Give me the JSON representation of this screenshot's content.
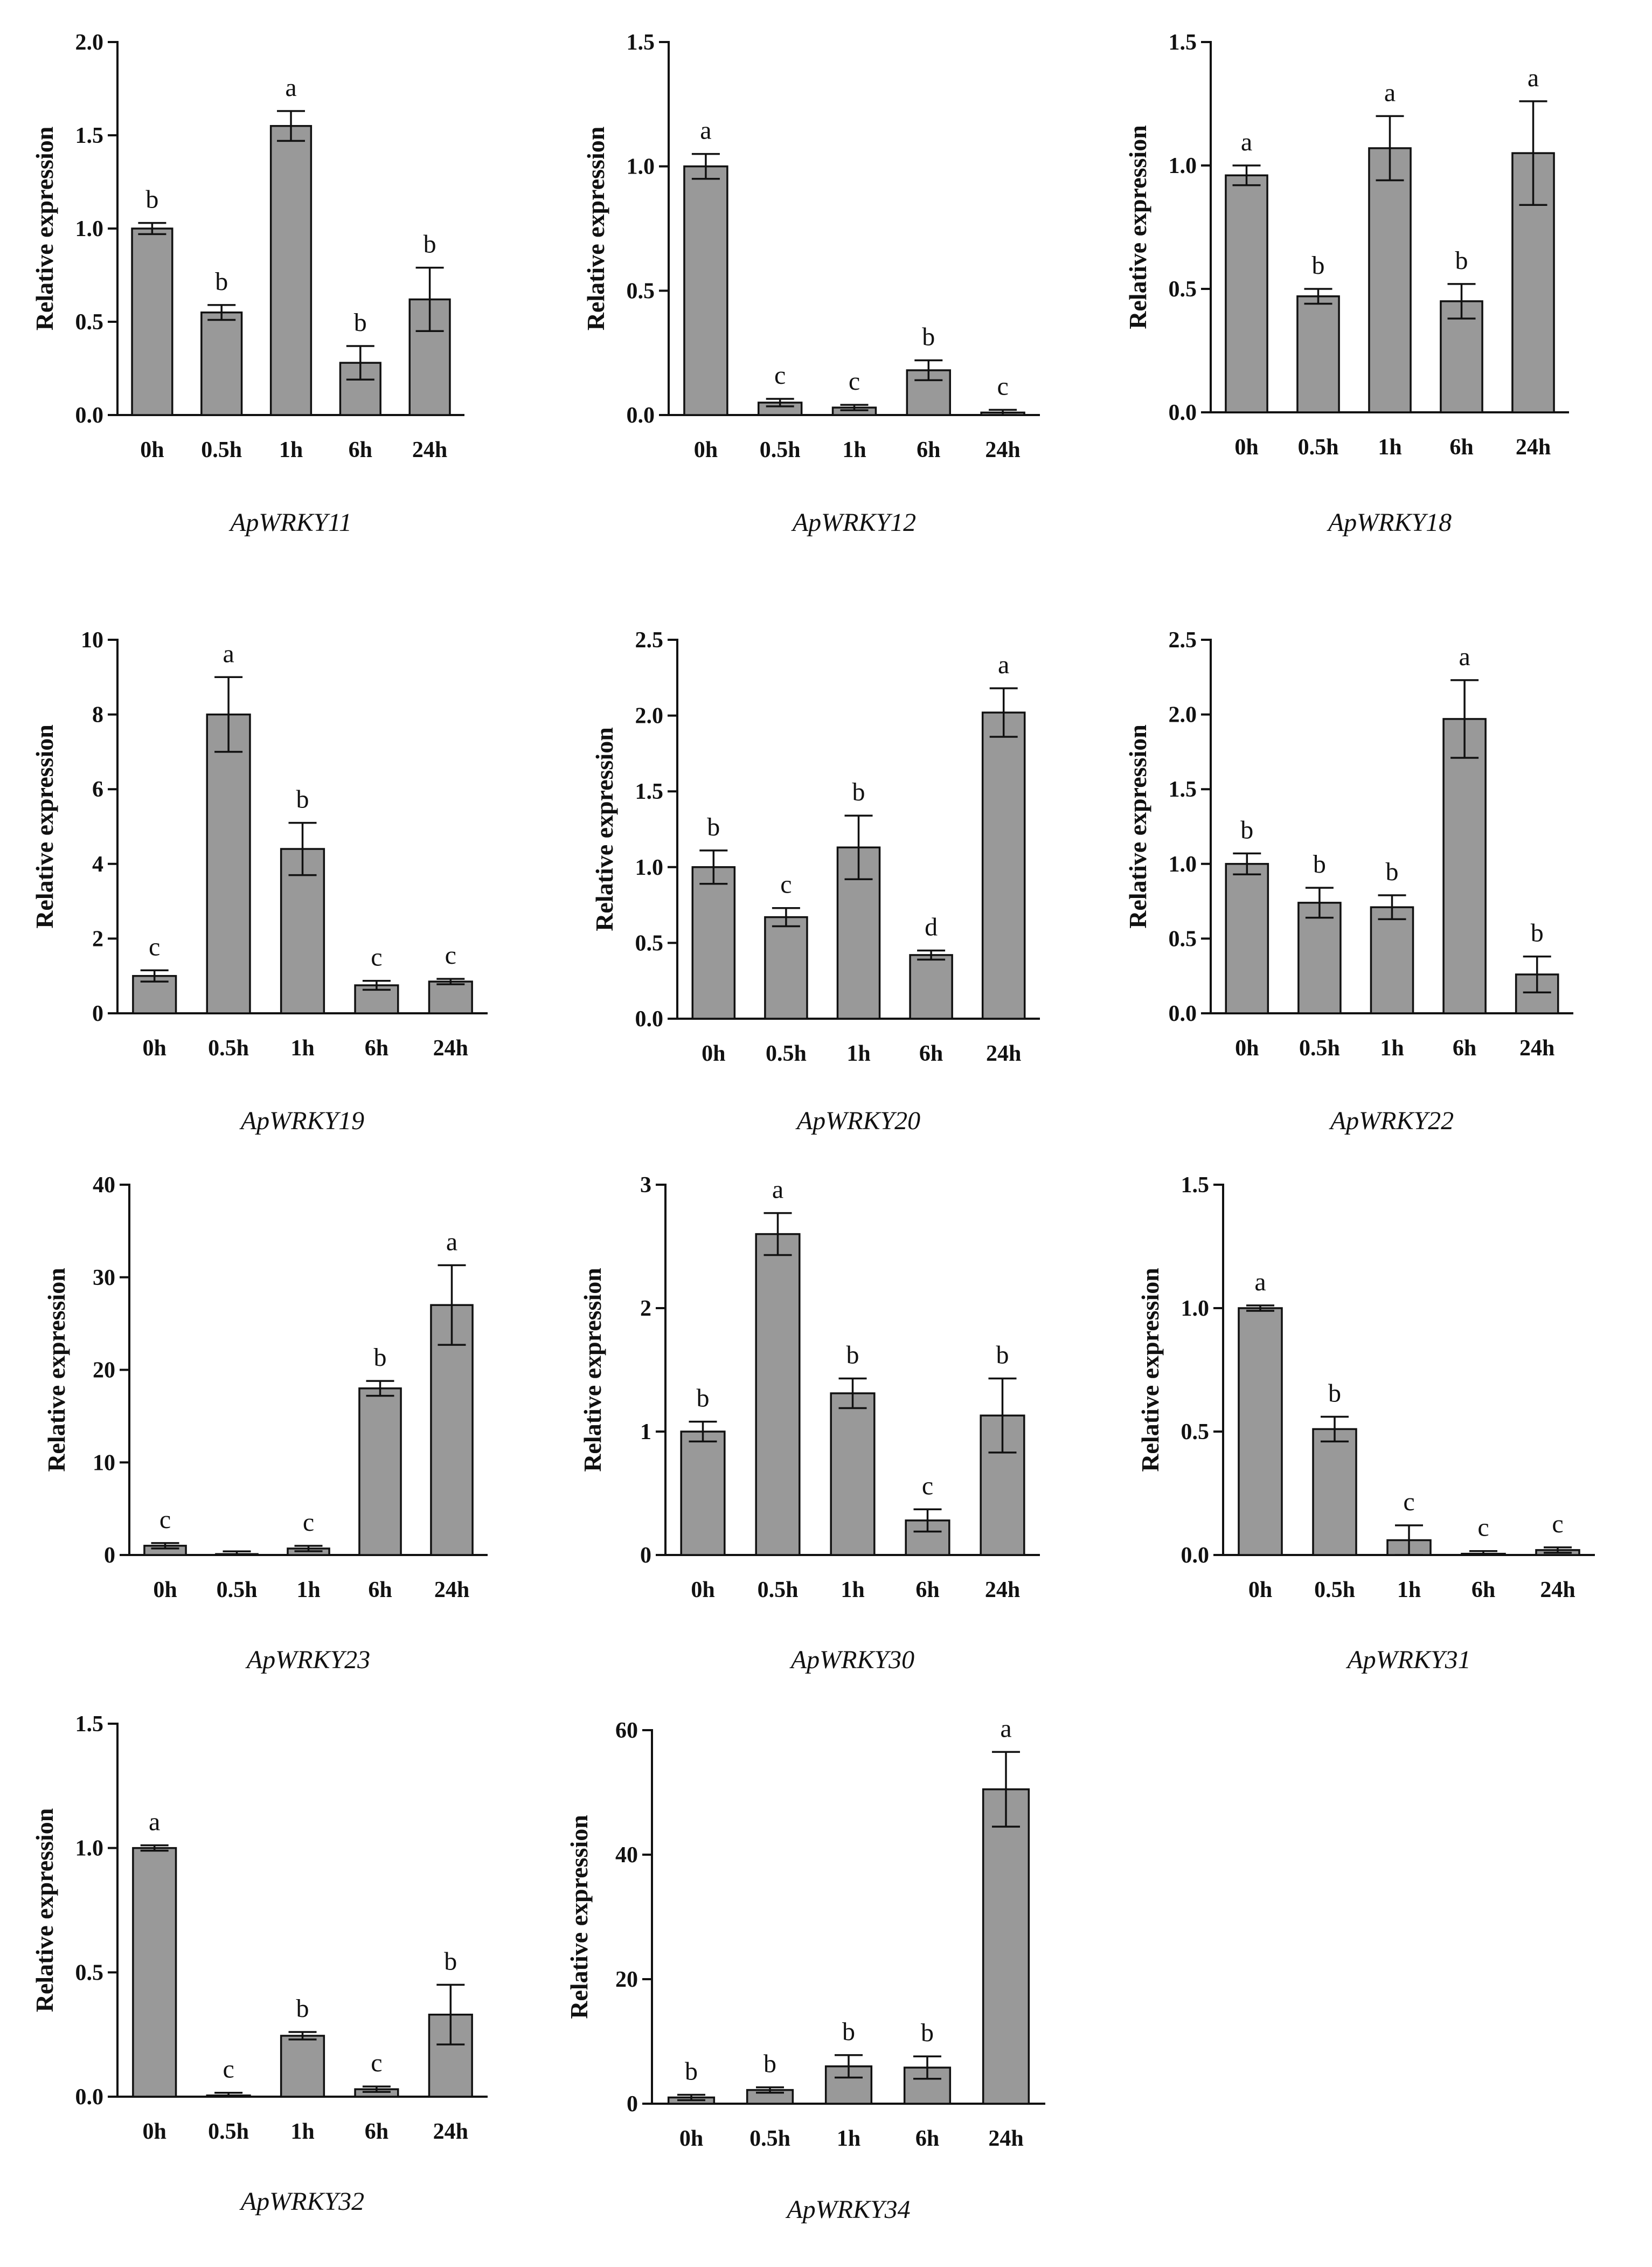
{
  "figure": {
    "bar_color": "#999999",
    "axis_color": "#111111"
  },
  "chart_data": [
    {
      "type": "bar",
      "title": "ApWRKY11",
      "ylabel": "Relative expression",
      "categories": [
        "0h",
        "0.5h",
        "1h",
        "6h",
        "24h"
      ],
      "values": [
        1.0,
        0.55,
        1.55,
        0.28,
        0.62
      ],
      "errors": [
        0.03,
        0.04,
        0.08,
        0.09,
        0.17
      ],
      "letters": [
        "b",
        "b",
        "a",
        "b",
        "b"
      ],
      "ylim": [
        0,
        2.0
      ],
      "yticks": [
        0.0,
        0.5,
        1.0,
        1.5,
        2.0
      ],
      "ytick_labels": [
        "0.0",
        "0.5",
        "1.0",
        "1.5",
        "2.0"
      ]
    },
    {
      "type": "bar",
      "title": "ApWRKY12",
      "ylabel": "Relative expression",
      "categories": [
        "0h",
        "0.5h",
        "1h",
        "6h",
        "24h"
      ],
      "values": [
        1.0,
        0.05,
        0.03,
        0.18,
        0.01
      ],
      "errors": [
        0.05,
        0.015,
        0.01,
        0.04,
        0.005
      ],
      "letters": [
        "a",
        "c",
        "c",
        "b",
        "c"
      ],
      "ylim": [
        0,
        1.5
      ],
      "yticks": [
        0.0,
        0.5,
        1.0,
        1.5
      ],
      "ytick_labels": [
        "0.0",
        "0.5",
        "1.0",
        "1.5"
      ]
    },
    {
      "type": "bar",
      "title": "ApWRKY18",
      "ylabel": "Relative expression",
      "categories": [
        "0h",
        "0.5h",
        "1h",
        "6h",
        "24h"
      ],
      "values": [
        0.96,
        0.47,
        1.07,
        0.45,
        1.05
      ],
      "errors": [
        0.04,
        0.03,
        0.13,
        0.07,
        0.21
      ],
      "letters": [
        "a",
        "b",
        "a",
        "b",
        "a"
      ],
      "ylim": [
        0,
        1.5
      ],
      "yticks": [
        0.0,
        0.5,
        1.0,
        1.5
      ],
      "ytick_labels": [
        "0.0",
        "0.5",
        "1.0",
        "1.5"
      ]
    },
    {
      "type": "bar",
      "title": "ApWRKY19",
      "ylabel": "Relative expression",
      "categories": [
        "0h",
        "0.5h",
        "1h",
        "6h",
        "24h"
      ],
      "values": [
        1.0,
        8.0,
        4.4,
        0.75,
        0.85
      ],
      "errors": [
        0.15,
        1.0,
        0.7,
        0.12,
        0.03
      ],
      "letters": [
        "c",
        "a",
        "b",
        "c",
        "c"
      ],
      "ylim": [
        0,
        10
      ],
      "yticks": [
        0,
        2,
        4,
        6,
        8,
        10
      ],
      "ytick_labels": [
        "0",
        "2",
        "4",
        "6",
        "8",
        "10"
      ]
    },
    {
      "type": "bar",
      "title": "ApWRKY20",
      "ylabel": "Relative expression",
      "categories": [
        "0h",
        "0.5h",
        "1h",
        "6h",
        "24h"
      ],
      "values": [
        1.0,
        0.67,
        1.13,
        0.42,
        2.02
      ],
      "errors": [
        0.11,
        0.06,
        0.21,
        0.03,
        0.16
      ],
      "letters": [
        "b",
        "c",
        "b",
        "d",
        "a"
      ],
      "ylim": [
        0,
        2.5
      ],
      "yticks": [
        0.0,
        0.5,
        1.0,
        1.5,
        2.0,
        2.5
      ],
      "ytick_labels": [
        "0.0",
        "0.5",
        "1.0",
        "1.5",
        "2.0",
        "2.5"
      ]
    },
    {
      "type": "bar",
      "title": "ApWRKY22",
      "ylabel": "Relative expression",
      "categories": [
        "0h",
        "0.5h",
        "1h",
        "6h",
        "24h"
      ],
      "values": [
        1.0,
        0.74,
        0.71,
        1.97,
        0.26
      ],
      "errors": [
        0.07,
        0.1,
        0.08,
        0.26,
        0.12
      ],
      "letters": [
        "b",
        "b",
        "b",
        "a",
        "b"
      ],
      "ylim": [
        0,
        2.5
      ],
      "yticks": [
        0.0,
        0.5,
        1.0,
        1.5,
        2.0,
        2.5
      ],
      "ytick_labels": [
        "0.0",
        "0.5",
        "1.0",
        "1.5",
        "2.0",
        "2.5"
      ]
    },
    {
      "type": "bar",
      "title": "ApWRKY23",
      "ylabel": "Relative expression",
      "categories": [
        "0h",
        "0.5h",
        "1h",
        "6h",
        "24h"
      ],
      "values": [
        1.0,
        0.1,
        0.7,
        18.0,
        27.0
      ],
      "errors": [
        0.1,
        0.05,
        0.2,
        0.8,
        4.3
      ],
      "letters": [
        "c",
        "",
        "c",
        "b",
        "a"
      ],
      "ylim": [
        0,
        40
      ],
      "yticks": [
        0,
        10,
        20,
        30,
        40
      ],
      "ytick_labels": [
        "0",
        "10",
        "20",
        "30",
        "40"
      ]
    },
    {
      "type": "bar",
      "title": "ApWRKY30",
      "ylabel": "Relative expression",
      "categories": [
        "0h",
        "0.5h",
        "1h",
        "6h",
        "24h"
      ],
      "values": [
        1.0,
        2.6,
        1.31,
        0.28,
        1.13
      ],
      "errors": [
        0.08,
        0.17,
        0.12,
        0.09,
        0.3
      ],
      "letters": [
        "b",
        "a",
        "b",
        "c",
        "b"
      ],
      "ylim": [
        0,
        3
      ],
      "yticks": [
        0,
        1,
        2,
        3
      ],
      "ytick_labels": [
        "0",
        "1",
        "2",
        "3"
      ]
    },
    {
      "type": "bar",
      "title": "ApWRKY31",
      "ylabel": "Relative expression",
      "categories": [
        "0h",
        "0.5h",
        "1h",
        "6h",
        "24h"
      ],
      "values": [
        1.0,
        0.51,
        0.06,
        0.005,
        0.02
      ],
      "errors": [
        0.01,
        0.05,
        0.06,
        0.003,
        0.01
      ],
      "letters": [
        "a",
        "b",
        "c",
        "c",
        "c"
      ],
      "ylim": [
        0,
        1.5
      ],
      "yticks": [
        0.0,
        0.5,
        1.0,
        1.5
      ],
      "ytick_labels": [
        "0.0",
        "0.5",
        "1.0",
        "1.5"
      ]
    },
    {
      "type": "bar",
      "title": "ApWRKY32",
      "ylabel": "Relative expression",
      "categories": [
        "0h",
        "0.5h",
        "1h",
        "6h",
        "24h"
      ],
      "values": [
        1.0,
        0.005,
        0.245,
        0.03,
        0.33
      ],
      "errors": [
        0.01,
        0.003,
        0.015,
        0.005,
        0.12
      ],
      "letters": [
        "a",
        "c",
        "b",
        "c",
        "b"
      ],
      "ylim": [
        0,
        1.5
      ],
      "yticks": [
        0.0,
        0.5,
        1.0,
        1.5
      ],
      "ytick_labels": [
        "0.0",
        "0.5",
        "1.0",
        "1.5"
      ]
    },
    {
      "type": "bar",
      "title": "ApWRKY34",
      "ylabel": "Relative expression",
      "categories": [
        "0h",
        "0.5h",
        "1h",
        "6h",
        "24h"
      ],
      "values": [
        1.0,
        2.2,
        6.0,
        5.8,
        50.5
      ],
      "errors": [
        0.2,
        0.2,
        1.8,
        1.8,
        6.0
      ],
      "letters": [
        "b",
        "b",
        "b",
        "b",
        "a"
      ],
      "ylim": [
        0,
        60
      ],
      "yticks": [
        0,
        20,
        40,
        60
      ],
      "ytick_labels": [
        "0",
        "20",
        "40",
        "60"
      ]
    }
  ]
}
